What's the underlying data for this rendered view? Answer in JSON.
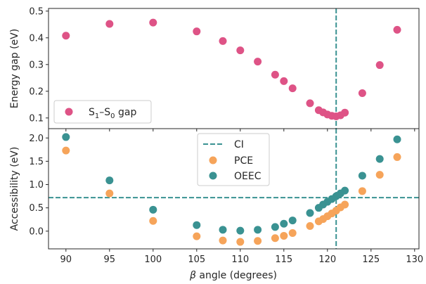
{
  "chart_data": [
    {
      "type": "scatter",
      "panel": "top",
      "xlabel_prefix": "β",
      "xlabel_suffix": " angle (degrees)",
      "ylabel": "Energy gap (eV)",
      "xlim": [
        88,
        130.5
      ],
      "ylim": [
        0.06,
        0.51
      ],
      "xticks": [
        90,
        95,
        100,
        105,
        110,
        115,
        120,
        125,
        130
      ],
      "yticks": [
        0.1,
        0.2,
        0.3,
        0.4,
        0.5
      ],
      "ytick_labels": [
        "0.1",
        "0.2",
        "0.3",
        "0.4",
        "0.5"
      ],
      "legend_position": "lower-left",
      "series": [
        {
          "name": "S1–S0 gap",
          "legend_parts": {
            "s": "S",
            "sub1": "1",
            "dash": "–S",
            "sub0": "0",
            "rest": " gap"
          },
          "color": "#de5386",
          "x": [
            90,
            95,
            100,
            105,
            108,
            110,
            112,
            114,
            115,
            116,
            118,
            119,
            119.5,
            120,
            120.5,
            121,
            121.5,
            122,
            124,
            126,
            128
          ],
          "y": [
            0.408,
            0.452,
            0.457,
            0.424,
            0.388,
            0.353,
            0.311,
            0.262,
            0.238,
            0.211,
            0.155,
            0.129,
            0.121,
            0.113,
            0.108,
            0.106,
            0.11,
            0.12,
            0.193,
            0.298,
            0.43
          ]
        }
      ],
      "vline": {
        "x": 121,
        "color": "#3a9292"
      }
    },
    {
      "type": "scatter",
      "panel": "bottom",
      "xlabel_prefix": "β",
      "xlabel_suffix": " angle (degrees)",
      "ylabel": "Accessibility (eV)",
      "xlim": [
        88,
        130.5
      ],
      "ylim": [
        -0.38,
        2.2
      ],
      "xticks": [
        90,
        95,
        100,
        105,
        110,
        115,
        120,
        125,
        130
      ],
      "xtick_labels": [
        "90",
        "95",
        "100",
        "105",
        "110",
        "115",
        "120",
        "125",
        "130"
      ],
      "yticks": [
        0.0,
        0.5,
        1.0,
        1.5,
        2.0
      ],
      "ytick_labels": [
        "0.0",
        "0.5",
        "1.0",
        "1.5",
        "2.0"
      ],
      "legend_position": "upper-center",
      "series": [
        {
          "name": "PCE",
          "color": "#f6a45a",
          "x": [
            90,
            95,
            100,
            105,
            108,
            110,
            112,
            114,
            115,
            116,
            118,
            119,
            119.5,
            120,
            120.5,
            121,
            121.5,
            122,
            124,
            126,
            128
          ],
          "y": [
            1.73,
            0.81,
            0.22,
            -0.11,
            -0.2,
            -0.23,
            -0.21,
            -0.15,
            -0.1,
            -0.04,
            0.11,
            0.21,
            0.26,
            0.32,
            0.38,
            0.44,
            0.51,
            0.57,
            0.86,
            1.21,
            1.59
          ]
        },
        {
          "name": "OEEC",
          "color": "#3a9292",
          "x": [
            90,
            95,
            100,
            105,
            108,
            110,
            112,
            114,
            115,
            116,
            118,
            119,
            119.5,
            120,
            120.5,
            121,
            121.5,
            122,
            124,
            126,
            128
          ],
          "y": [
            2.02,
            1.09,
            0.46,
            0.13,
            0.03,
            0.01,
            0.03,
            0.09,
            0.16,
            0.23,
            0.39,
            0.5,
            0.57,
            0.63,
            0.69,
            0.75,
            0.81,
            0.87,
            1.19,
            1.55,
            1.97
          ]
        }
      ],
      "vline": {
        "x": 121,
        "color": "#3a9292"
      },
      "hline": {
        "y": 0.72,
        "name": "CI",
        "color": "#3a9292"
      }
    }
  ]
}
